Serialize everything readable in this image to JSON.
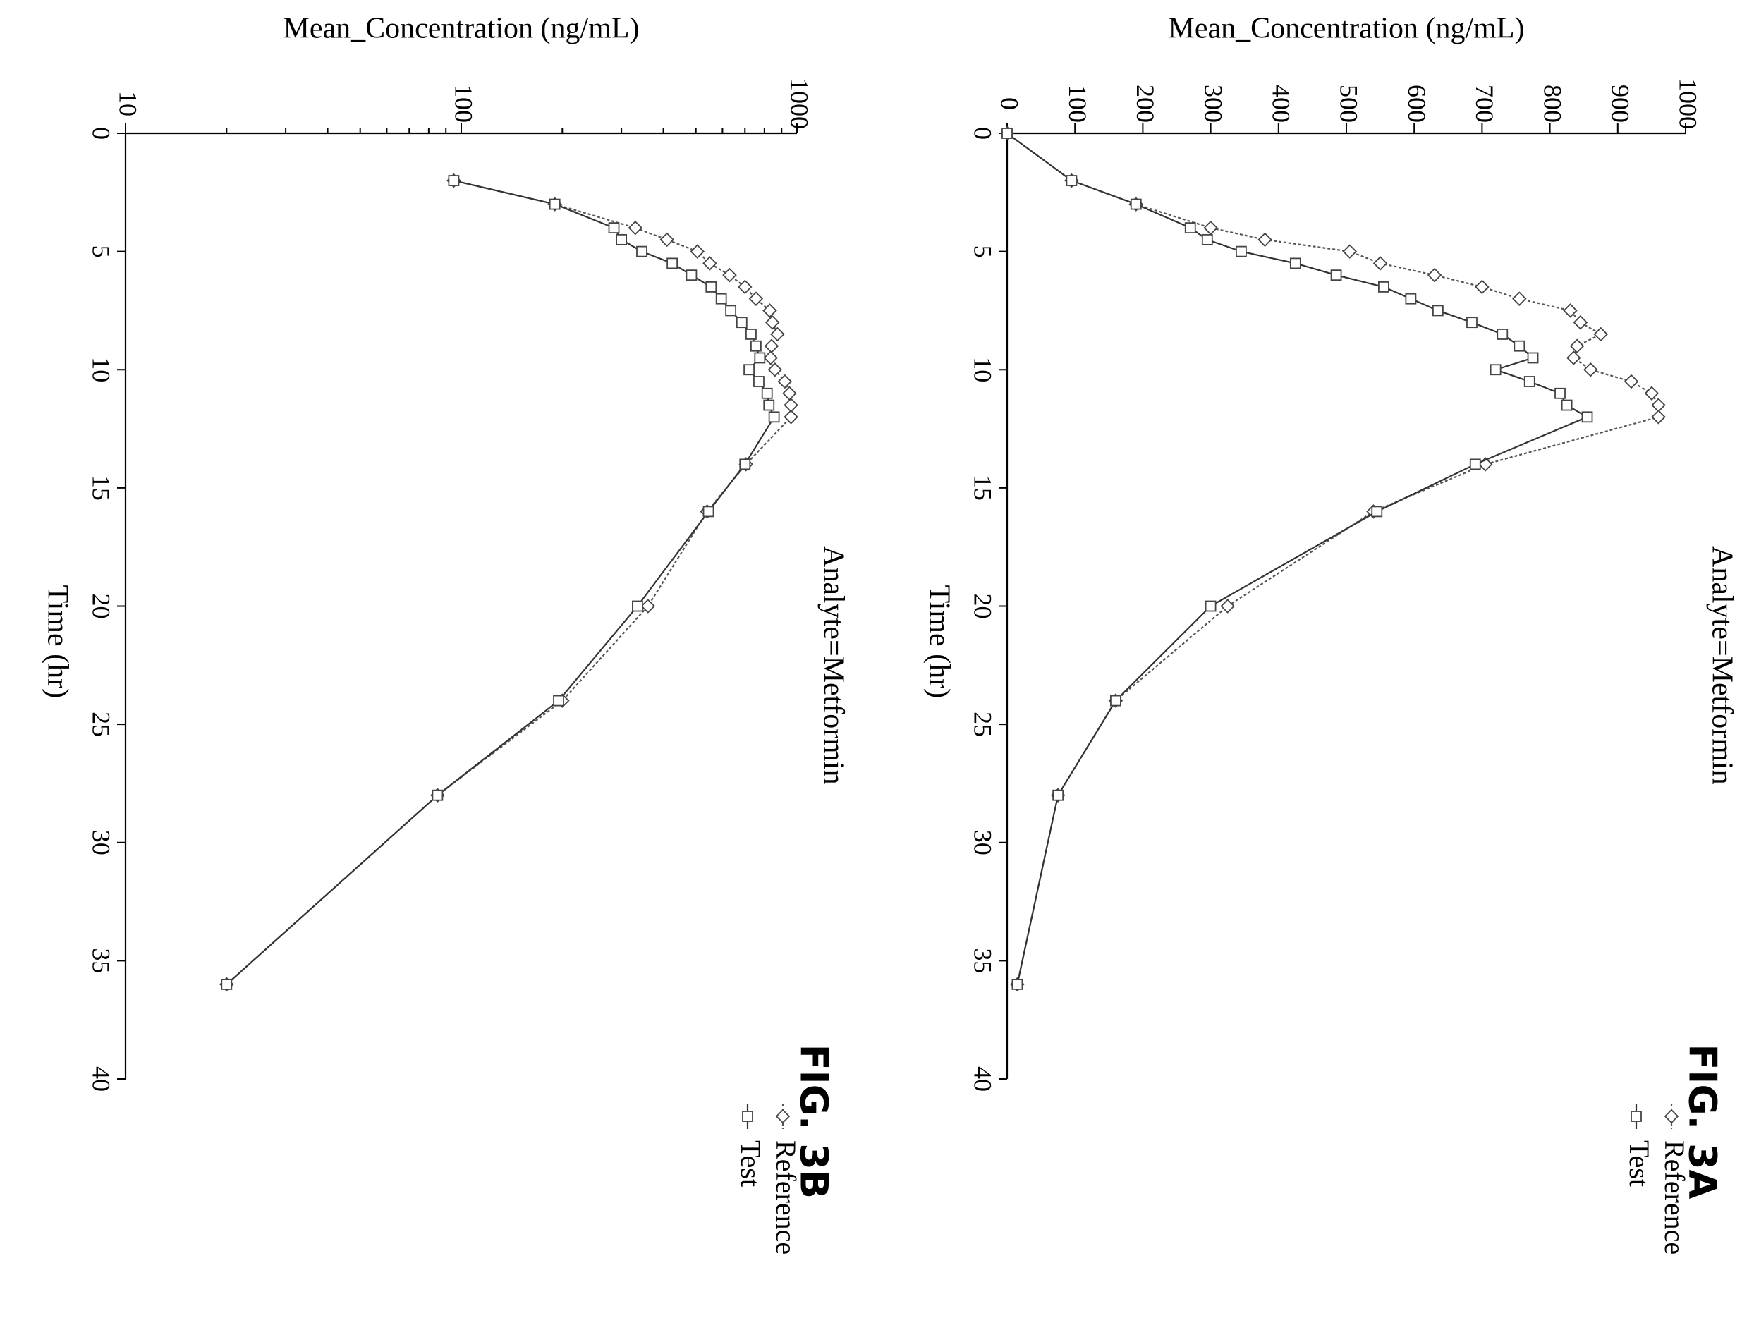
{
  "chart_data": [
    {
      "figure_label": "FIG. 3A",
      "type": "line",
      "annotation": "Analyte=Metformin",
      "xlabel": "Time (hr)",
      "ylabel": "Mean_Concentration (ng/mL)",
      "xlim": [
        0,
        40
      ],
      "ylim": [
        0,
        1000
      ],
      "y_scale": "linear",
      "x_ticks": [
        "0",
        "5",
        "10",
        "15",
        "20",
        "25",
        "30",
        "35",
        "40"
      ],
      "y_ticks": [
        "0",
        "100",
        "200",
        "300",
        "400",
        "500",
        "600",
        "700",
        "800",
        "900",
        "1000"
      ],
      "legend": [
        "Reference",
        "Test"
      ],
      "legend_position": "bottom-left",
      "grid": false,
      "orientation": "rotated 90° clockwise",
      "series": [
        {
          "name": "Reference",
          "marker": "diamond",
          "points": [
            [
              0,
              0
            ],
            [
              2,
              95
            ],
            [
              3,
              190
            ],
            [
              4,
              300
            ],
            [
              4.5,
              380
            ],
            [
              5,
              505
            ],
            [
              5.5,
              550
            ],
            [
              6,
              630
            ],
            [
              6.5,
              700
            ],
            [
              7,
              755
            ],
            [
              7.5,
              830
            ],
            [
              8,
              845
            ],
            [
              8.5,
              875
            ],
            [
              9,
              840
            ],
            [
              9.5,
              835
            ],
            [
              10,
              860
            ],
            [
              10.5,
              920
            ],
            [
              11,
              950
            ],
            [
              11.5,
              960
            ],
            [
              12,
              960
            ],
            [
              14,
              705
            ],
            [
              16,
              540
            ],
            [
              20,
              325
            ],
            [
              24,
              160
            ],
            [
              28,
              75
            ],
            [
              36,
              15
            ]
          ]
        },
        {
          "name": "Test",
          "marker": "square",
          "points": [
            [
              0,
              0
            ],
            [
              2,
              95
            ],
            [
              3,
              190
            ],
            [
              4,
              270
            ],
            [
              4.5,
              295
            ],
            [
              5,
              345
            ],
            [
              5.5,
              425
            ],
            [
              6,
              485
            ],
            [
              6.5,
              555
            ],
            [
              7,
              595
            ],
            [
              7.5,
              635
            ],
            [
              8,
              685
            ],
            [
              8.5,
              730
            ],
            [
              9,
              755
            ],
            [
              9.5,
              775
            ],
            [
              10,
              720
            ],
            [
              10.5,
              770
            ],
            [
              11,
              815
            ],
            [
              11.5,
              825
            ],
            [
              12,
              855
            ],
            [
              14,
              690
            ],
            [
              16,
              545
            ],
            [
              20,
              300
            ],
            [
              24,
              160
            ],
            [
              28,
              75
            ],
            [
              36,
              15
            ]
          ]
        }
      ]
    },
    {
      "figure_label": "FIG. 3B",
      "type": "line",
      "annotation": "Analyte=Metformin",
      "xlabel": "Time (hr)",
      "ylabel": "Mean_Concentration (ng/mL)",
      "xlim": [
        0,
        40
      ],
      "ylim": [
        10,
        1000
      ],
      "y_scale": "log",
      "x_ticks": [
        "0",
        "5",
        "10",
        "15",
        "20",
        "25",
        "30",
        "35",
        "40"
      ],
      "y_ticks": [
        "10",
        "100",
        "1000"
      ],
      "legend": [
        "Reference",
        "Test"
      ],
      "legend_position": "bottom-left",
      "grid": false,
      "orientation": "rotated 90° clockwise",
      "series": [
        {
          "name": "Reference",
          "marker": "diamond",
          "points": [
            [
              2,
              95
            ],
            [
              3,
              190
            ],
            [
              4,
              330
            ],
            [
              4.5,
              410
            ],
            [
              5,
              505
            ],
            [
              5.5,
              550
            ],
            [
              6,
              630
            ],
            [
              6.5,
              700
            ],
            [
              7,
              755
            ],
            [
              7.5,
              830
            ],
            [
              8,
              845
            ],
            [
              8.5,
              875
            ],
            [
              9,
              840
            ],
            [
              9.5,
              835
            ],
            [
              10,
              860
            ],
            [
              10.5,
              920
            ],
            [
              11,
              950
            ],
            [
              11.5,
              960
            ],
            [
              12,
              960
            ],
            [
              14,
              705
            ],
            [
              16,
              540
            ],
            [
              20,
              360
            ],
            [
              24,
              200
            ],
            [
              28,
              85
            ],
            [
              36,
              20
            ]
          ]
        },
        {
          "name": "Test",
          "marker": "square",
          "points": [
            [
              2,
              95
            ],
            [
              3,
              190
            ],
            [
              4,
              285
            ],
            [
              4.5,
              300
            ],
            [
              5,
              345
            ],
            [
              5.5,
              425
            ],
            [
              6,
              485
            ],
            [
              6.5,
              555
            ],
            [
              7,
              595
            ],
            [
              7.5,
              635
            ],
            [
              8,
              685
            ],
            [
              8.5,
              730
            ],
            [
              9,
              755
            ],
            [
              9.5,
              775
            ],
            [
              10,
              720
            ],
            [
              10.5,
              770
            ],
            [
              11,
              815
            ],
            [
              11.5,
              825
            ],
            [
              12,
              855
            ],
            [
              14,
              700
            ],
            [
              16,
              545
            ],
            [
              20,
              335
            ],
            [
              24,
              195
            ],
            [
              28,
              85
            ],
            [
              36,
              20
            ]
          ]
        }
      ]
    }
  ]
}
